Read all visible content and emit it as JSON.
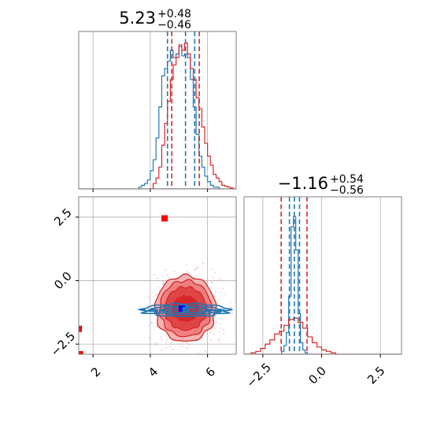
{
  "chart_data": [
    {
      "panel": "top-left",
      "type": "histogram",
      "title_main": "5.23",
      "title_sup": "+0.48",
      "title_sub": "−0.46",
      "xlim": [
        1.5,
        7.0
      ],
      "xticks": [
        2,
        4,
        6
      ],
      "grid": true,
      "series": [
        {
          "color": "#1f77b4",
          "x_edges": [
            3.6,
            3.7,
            3.8,
            3.9,
            4.0,
            4.1,
            4.2,
            4.3,
            4.4,
            4.5,
            4.6,
            4.7,
            4.8,
            4.9,
            5.0,
            5.1,
            5.2,
            5.3,
            5.4,
            5.5,
            5.6,
            5.7,
            5.8,
            5.9,
            6.0,
            6.1,
            6.2,
            6.3,
            6.4
          ],
          "counts": [
            0.01,
            0.02,
            0.03,
            0.05,
            0.1,
            0.16,
            0.28,
            0.45,
            0.62,
            0.66,
            0.7,
            0.76,
            0.72,
            0.74,
            0.78,
            0.73,
            0.74,
            0.72,
            0.6,
            0.45,
            0.3,
            0.18,
            0.12,
            0.07,
            0.04,
            0.02,
            0.01,
            0.01
          ],
          "quantile_lines": [
            4.6,
            5.55
          ]
        },
        {
          "color": "#d62728",
          "x_edges": [
            4.1,
            4.2,
            4.3,
            4.4,
            4.5,
            4.6,
            4.7,
            4.8,
            4.9,
            5.0,
            5.1,
            5.2,
            5.3,
            5.4,
            5.5,
            5.6,
            5.7,
            5.8,
            5.9,
            6.0,
            6.1,
            6.2,
            6.3,
            6.4,
            6.5,
            6.6,
            6.7,
            6.8,
            6.9
          ],
          "counts": [
            0.03,
            0.06,
            0.12,
            0.24,
            0.36,
            0.48,
            0.6,
            0.68,
            0.72,
            0.79,
            0.76,
            0.8,
            0.74,
            0.66,
            0.6,
            0.5,
            0.44,
            0.34,
            0.25,
            0.18,
            0.13,
            0.08,
            0.06,
            0.04,
            0.02,
            0.015,
            0.01,
            0.005
          ],
          "quantile_lines": [
            4.75,
            5.71
          ]
        }
      ],
      "median_line": {
        "x": 5.23,
        "color": "#1f77b4"
      }
    },
    {
      "panel": "bottom-left",
      "type": "contour",
      "xlim": [
        1.5,
        7.0
      ],
      "ylim": [
        -2.9,
        3.3
      ],
      "xticks": [
        2,
        4,
        6
      ],
      "yticks": [
        2.5,
        0.0,
        -2.5
      ],
      "ytick_labels": [
        "2.5",
        "0.0",
        "−2.5"
      ],
      "grid": true,
      "outlier_points": [
        {
          "x": 4.5,
          "y": 2.45,
          "color": "#ff0000"
        },
        {
          "x": 1.5,
          "y": -1.9,
          "color": "#ff0000"
        },
        {
          "x": 1.55,
          "y": -2.9,
          "color": "#ff0000"
        }
      ],
      "red_contours": {
        "center": [
          5.23,
          -1.1
        ],
        "levels": [
          {
            "rx": 1.05,
            "ry": 1.3,
            "fill": "#f6b3b3"
          },
          {
            "rx": 0.9,
            "ry": 1.1,
            "fill": "#ee8080"
          },
          {
            "rx": 0.72,
            "ry": 0.85,
            "fill": "#e04545"
          },
          {
            "rx": 0.45,
            "ry": 0.5,
            "fill": "#d62728"
          }
        ],
        "line_color": "#d62728"
      },
      "blue_contours": {
        "center": [
          5.23,
          -1.16
        ],
        "levels": [
          {
            "rx": 1.5,
            "ry": 0.25
          },
          {
            "rx": 1.2,
            "ry": 0.17
          },
          {
            "rx": 0.85,
            "ry": 0.1
          }
        ],
        "color": "#1f77b4"
      },
      "markers": [
        {
          "x": 5.1,
          "y": -1.1,
          "color": "#0000ff"
        },
        {
          "x": 5.23,
          "y": -1.16,
          "color": "#1f77b4"
        }
      ]
    },
    {
      "panel": "bottom-right",
      "type": "histogram",
      "title_main": "−1.16",
      "title_sup": "+0.54",
      "title_sub": "−0.56",
      "xlim": [
        -3.3,
        3.4
      ],
      "xticks": [
        -2.5,
        0.0,
        2.5
      ],
      "xtick_labels": [
        "−2.5",
        "0.0",
        "2.5"
      ],
      "grid": true,
      "series": [
        {
          "color": "#1f77b4",
          "x_edges": [
            -1.7,
            -1.6,
            -1.5,
            -1.4,
            -1.3,
            -1.2,
            -1.1,
            -1.0,
            -0.9,
            -0.8,
            -0.7,
            -0.6
          ],
          "counts": [
            0.02,
            0.06,
            0.15,
            0.4,
            0.88,
            0.95,
            0.72,
            0.28,
            0.08,
            0.03,
            0.01
          ],
          "quantile_lines": [
            -1.37,
            -0.94
          ]
        },
        {
          "color": "#d62728",
          "x_edges": [
            -3.0,
            -2.8,
            -2.6,
            -2.4,
            -2.2,
            -2.0,
            -1.8,
            -1.6,
            -1.4,
            -1.2,
            -1.0,
            -0.8,
            -0.6,
            -0.4,
            -0.2,
            0.0,
            0.2,
            0.4,
            0.6
          ],
          "counts": [
            0.01,
            0.02,
            0.04,
            0.07,
            0.1,
            0.14,
            0.16,
            0.2,
            0.24,
            0.25,
            0.22,
            0.18,
            0.12,
            0.08,
            0.05,
            0.03,
            0.02,
            0.01
          ],
          "quantile_lines": [
            -1.72,
            -0.62
          ]
        }
      ]
    }
  ]
}
